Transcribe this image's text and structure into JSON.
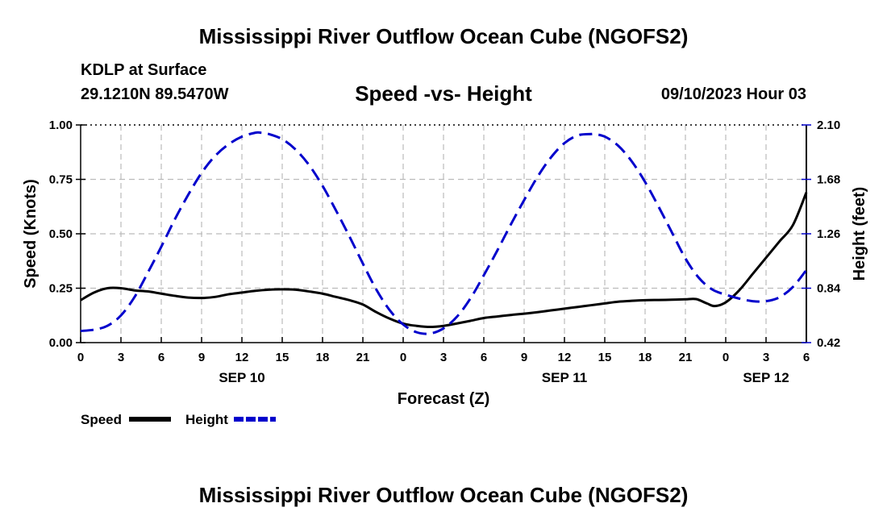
{
  "header": {
    "title": "Mississippi River Outflow Ocean Cube (NGOFS2)",
    "station": "KDLP at Surface",
    "coords": "29.1210N  89.5470W",
    "subtitle": "Speed -vs- Height",
    "date": "09/10/2023 Hour 03"
  },
  "footer": {
    "title": "Mississippi River Outflow Ocean Cube (NGOFS2)"
  },
  "colors": {
    "speed": "#000000",
    "height": "#0000cc",
    "grid": "#bbbbbb"
  },
  "chart_data": {
    "type": "line",
    "title": "Speed -vs- Height",
    "xlabel": "Forecast (Z)",
    "ylabel_left": "Speed (Knots)",
    "ylabel_right": "Height (feet)",
    "xlim": [
      0,
      54
    ],
    "ylim_left": [
      0,
      1
    ],
    "ylim_right": [
      0.42,
      2.1
    ],
    "x_ticks": [
      0,
      3,
      6,
      9,
      12,
      15,
      18,
      21,
      24,
      27,
      30,
      33,
      36,
      39,
      42,
      45,
      48,
      51,
      54
    ],
    "x_tick_labels": [
      "0",
      "3",
      "6",
      "9",
      "12",
      "15",
      "18",
      "21",
      "0",
      "3",
      "6",
      "9",
      "12",
      "15",
      "18",
      "21",
      "0",
      "3",
      "6"
    ],
    "day_labels": [
      {
        "x": 12,
        "label": "SEP 10"
      },
      {
        "x": 36,
        "label": "SEP 11"
      },
      {
        "x": 51,
        "label": "SEP 12"
      }
    ],
    "y_left_ticks": [
      0,
      0.25,
      0.5,
      0.75,
      1.0
    ],
    "y_left_tick_labels": [
      "0.00",
      "0.25",
      "0.50",
      "0.75",
      "1.00"
    ],
    "y_right_ticks": [
      0.42,
      0.84,
      1.26,
      1.68,
      2.1
    ],
    "y_right_tick_labels": [
      "0.42",
      "0.84",
      "1.26",
      "1.68",
      "2.10"
    ],
    "grid": true,
    "legend": {
      "position": "bottom-left",
      "speed_label": "Speed",
      "height_label": "Height"
    },
    "series": [
      {
        "name": "Speed",
        "axis": "left",
        "style": "solid",
        "x": [
          0,
          1,
          2,
          3,
          4,
          5,
          6,
          7,
          8,
          9,
          10,
          11,
          12,
          13,
          14,
          15,
          16,
          17,
          18,
          19,
          20,
          21,
          22,
          23,
          24,
          25,
          26,
          27,
          28,
          29,
          30,
          31,
          32,
          33,
          34,
          35,
          36,
          37,
          38,
          39,
          40,
          41,
          42,
          43,
          44,
          45,
          45.8,
          46.6,
          47.2,
          48,
          49,
          50,
          51,
          52,
          53,
          54
        ],
        "values": [
          0.195,
          0.23,
          0.25,
          0.25,
          0.24,
          0.235,
          0.225,
          0.215,
          0.207,
          0.205,
          0.21,
          0.222,
          0.23,
          0.238,
          0.243,
          0.245,
          0.243,
          0.235,
          0.225,
          0.21,
          0.195,
          0.175,
          0.14,
          0.11,
          0.087,
          0.077,
          0.072,
          0.077,
          0.088,
          0.1,
          0.113,
          0.12,
          0.127,
          0.133,
          0.14,
          0.148,
          0.156,
          0.164,
          0.172,
          0.18,
          0.188,
          0.192,
          0.195,
          0.196,
          0.197,
          0.199,
          0.2,
          0.18,
          0.168,
          0.185,
          0.24,
          0.315,
          0.39,
          0.465,
          0.54,
          0.69
        ]
      },
      {
        "name": "Height",
        "axis": "right",
        "style": "dashed",
        "x": [
          0,
          1,
          2,
          3,
          4,
          5,
          6,
          7,
          8,
          9,
          10,
          11,
          12,
          13,
          13.4,
          14,
          15,
          16,
          17,
          18,
          19,
          20,
          21,
          22,
          23,
          24,
          25,
          26,
          27,
          28,
          29,
          30,
          31,
          32,
          33,
          34,
          35,
          36,
          37,
          38,
          38.2,
          39,
          40,
          41,
          42,
          43,
          44,
          45,
          46,
          47,
          48,
          49,
          50,
          51,
          52,
          53,
          54
        ],
        "values": [
          0.51,
          0.52,
          0.55,
          0.63,
          0.77,
          0.96,
          1.16,
          1.37,
          1.56,
          1.73,
          1.86,
          1.95,
          2.01,
          2.04,
          2.04,
          2.03,
          1.99,
          1.91,
          1.79,
          1.63,
          1.44,
          1.24,
          1.03,
          0.83,
          0.67,
          0.56,
          0.5,
          0.49,
          0.53,
          0.62,
          0.76,
          0.94,
          1.13,
          1.33,
          1.52,
          1.7,
          1.85,
          1.96,
          2.02,
          2.03,
          2.03,
          2.01,
          1.94,
          1.82,
          1.66,
          1.47,
          1.27,
          1.07,
          0.92,
          0.83,
          0.79,
          0.76,
          0.74,
          0.74,
          0.77,
          0.85,
          0.98
        ]
      }
    ]
  }
}
